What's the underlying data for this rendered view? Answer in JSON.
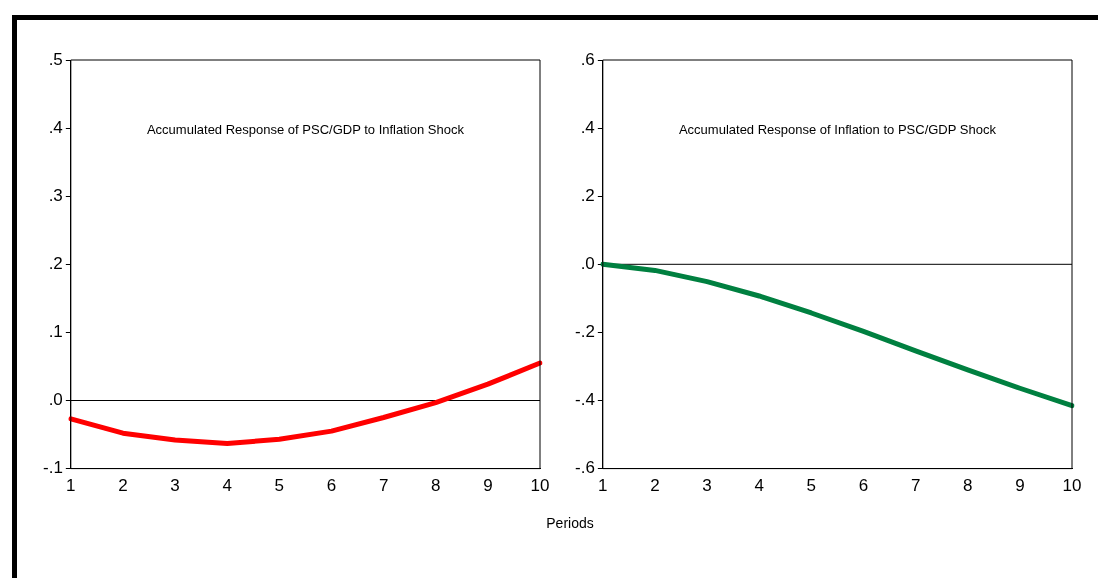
{
  "chart_data": [
    {
      "type": "line",
      "title": "Accumulated Response of PSC/GDP to Inflation Shock",
      "xlabel": "Periods",
      "categories": [
        "1",
        "2",
        "3",
        "4",
        "5",
        "6",
        "7",
        "8",
        "9",
        "10"
      ],
      "series": [
        {
          "color": "#ff0000",
          "values": [
            -0.027,
            -0.048,
            -0.058,
            -0.063,
            -0.057,
            -0.045,
            -0.025,
            -0.003,
            0.024,
            0.055
          ]
        }
      ],
      "ylim": [
        -0.1,
        0.5
      ],
      "yticks": [
        {
          "value": -0.1,
          "label": "-.1"
        },
        {
          "value": 0,
          "label": ".0"
        },
        {
          "value": 0.1,
          "label": ".1"
        },
        {
          "value": 0.2,
          "label": ".2"
        },
        {
          "value": 0.3,
          "label": ".3"
        },
        {
          "value": 0.4,
          "label": ".4"
        },
        {
          "value": 0.5,
          "label": ".5"
        }
      ],
      "ref_lines": [
        {
          "axis": "y",
          "value": 0,
          "color": "#000000"
        }
      ],
      "marker": "none",
      "legend": false
    },
    {
      "type": "line",
      "title": "Accumulated Response of Inflation to PSC/GDP Shock",
      "categories": [
        "1",
        "2",
        "3",
        "4",
        "5",
        "6",
        "7",
        "8",
        "9",
        "10"
      ],
      "series": [
        {
          "color": "#008040",
          "values": [
            0,
            -0.018,
            -0.051,
            -0.093,
            -0.143,
            -0.197,
            -0.254,
            -0.31,
            -0.364,
            -0.415
          ]
        }
      ],
      "ylim": [
        -0.6,
        0.6
      ],
      "yticks": [
        {
          "value": -0.6,
          "label": "-.6"
        },
        {
          "value": -0.4,
          "label": "-.4"
        },
        {
          "value": -0.2,
          "label": "-.2"
        },
        {
          "value": 0,
          "label": ".0"
        },
        {
          "value": 0.2,
          "label": ".2"
        },
        {
          "value": 0.4,
          "label": ".4"
        },
        {
          "value": 0.6,
          "label": ".6"
        }
      ],
      "ref_lines": [
        {
          "axis": "y",
          "value": 0,
          "color": "#000000"
        }
      ],
      "marker": "none",
      "legend": false
    }
  ]
}
